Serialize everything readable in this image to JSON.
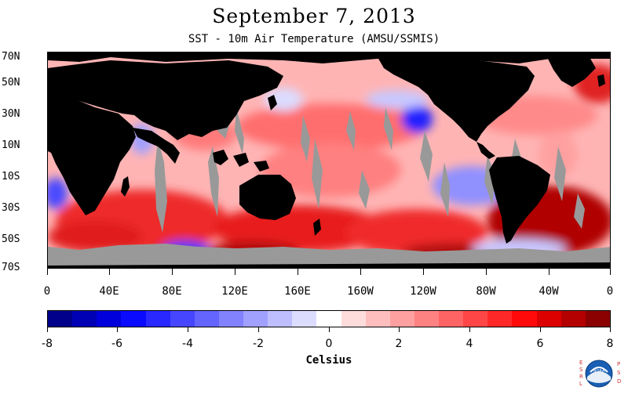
{
  "title": "September 7, 2013",
  "subtitle": "SST - 10m Air Temperature (AMSU/SSMIS)",
  "lat_labels": [
    "70N",
    "50N",
    "30N",
    "10N",
    "10S",
    "30S",
    "50S",
    "70S"
  ],
  "lon_labels": [
    "0",
    "40E",
    "80E",
    "120E",
    "160E",
    "160W",
    "120W",
    "80W",
    "40W",
    "0"
  ],
  "colorbar": {
    "labels": [
      "-8",
      "-6",
      "-4",
      "-2",
      "0",
      "2",
      "4",
      "6",
      "8"
    ],
    "units": "Celsius",
    "range": [
      -8,
      8
    ],
    "colors": [
      "#00008b",
      "#0000b4",
      "#0000dc",
      "#0a0aff",
      "#2828ff",
      "#4646ff",
      "#6464ff",
      "#8282ff",
      "#a0a0ff",
      "#bebeff",
      "#dcdcff",
      "#ffffff",
      "#ffdcdc",
      "#ffbebe",
      "#ffa0a0",
      "#ff8282",
      "#ff6464",
      "#ff4646",
      "#ff2828",
      "#ff0a0a",
      "#dc0000",
      "#b40000",
      "#8b0000"
    ]
  },
  "legend_colors": {
    "land": "#000000",
    "missing": "#999999"
  },
  "logo": {
    "left_text": "ESRL",
    "right_text": "PSD",
    "center_text": "NOAA"
  }
}
